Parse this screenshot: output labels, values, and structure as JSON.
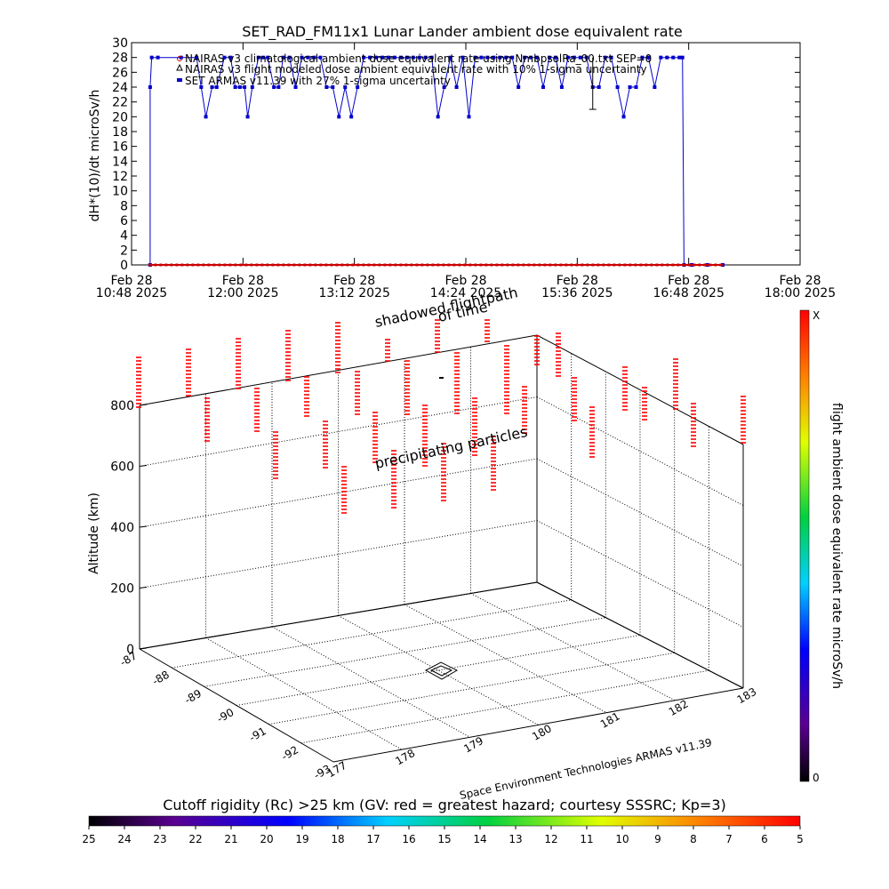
{
  "chart_data": [
    {
      "type": "line",
      "title": "SET_RAD_FM11x1  Lunar Lander ambient dose equivalent rate",
      "ylabel": "dH*(10)/dt microSv/h",
      "ylim": [
        0,
        30
      ],
      "yticks": [
        0,
        2,
        4,
        6,
        8,
        10,
        12,
        14,
        16,
        18,
        20,
        22,
        24,
        26,
        28,
        30
      ],
      "xlim": [
        "2025-02-28 10:48",
        "2025-02-28 18:00"
      ],
      "xticks": [
        {
          "line1": "Feb 28",
          "line2": "10:48  2025",
          "t": "10:48"
        },
        {
          "line1": "Feb 28",
          "line2": "12:00  2025",
          "t": "12:00"
        },
        {
          "line1": "Feb 28",
          "line2": "13:12  2025",
          "t": "13:12"
        },
        {
          "line1": "Feb 28",
          "line2": "14:24  2025",
          "t": "14:24"
        },
        {
          "line1": "Feb 28",
          "line2": "15:36  2025",
          "t": "15:36"
        },
        {
          "line1": "Feb 28",
          "line2": "16:48  2025",
          "t": "16:48"
        },
        {
          "line1": "Feb 28",
          "line2": "18:00  2025",
          "t": "18:00"
        }
      ],
      "legend": [
        "NAIRAS v3 climatological ambient dose equivalent rate using NmbpsolRa_00.txt SEP=0",
        "NAIRAS v3 flight modeled dose ambient equivalent rate with 10% 1-sigma uncertainty",
        "SET ARMAS v11.39 with 27% 1-sigma uncertainty"
      ],
      "series": [
        {
          "name": "SET ARMAS v11.39 with 27% 1-sigma uncertainty",
          "color": "#0000cc",
          "x": [
            "11:00",
            "11:00",
            "11:01",
            "11:05",
            "11:20",
            "11:30",
            "11:33",
            "11:36",
            "11:40",
            "11:43",
            "11:48",
            "11:52",
            "11:55",
            "11:58",
            "12:01",
            "12:03",
            "12:06",
            "12:10",
            "12:13",
            "12:16",
            "12:20",
            "12:23",
            "12:26",
            "12:30",
            "12:34",
            "12:38",
            "12:42",
            "12:46",
            "12:50",
            "12:54",
            "12:58",
            "13:02",
            "13:06",
            "13:10",
            "13:14",
            "13:18",
            "13:22",
            "13:26",
            "13:30",
            "13:34",
            "13:38",
            "13:42",
            "13:46",
            "13:50",
            "13:54",
            "13:58",
            "14:02",
            "14:06",
            "14:10",
            "14:14",
            "14:18",
            "14:22",
            "14:26",
            "14:30",
            "14:34",
            "14:38",
            "14:42",
            "14:46",
            "14:50",
            "14:54",
            "14:58",
            "15:02",
            "15:06",
            "15:10",
            "15:14",
            "15:18",
            "15:22",
            "15:26",
            "15:30",
            "15:34",
            "15:38",
            "15:42",
            "15:46",
            "15:50",
            "15:54",
            "15:58",
            "16:02",
            "16:06",
            "16:10",
            "16:14",
            "16:18",
            "16:22",
            "16:26",
            "16:30",
            "16:34",
            "16:38",
            "16:42",
            "16:44",
            "16:45",
            "16:50",
            "17:00",
            "17:10"
          ],
          "y": [
            0,
            24,
            28,
            28,
            28,
            28,
            24,
            20,
            24,
            24,
            28,
            28,
            24,
            24,
            24,
            20,
            24,
            28,
            28,
            28,
            24,
            24,
            28,
            28,
            24,
            28,
            28,
            28,
            28,
            24,
            24,
            20,
            24,
            20,
            24,
            28,
            28,
            28,
            28,
            28,
            28,
            28,
            28,
            28,
            28,
            28,
            28,
            20,
            24,
            28,
            24,
            28,
            20,
            28,
            28,
            28,
            28,
            28,
            28,
            28,
            24,
            28,
            28,
            28,
            24,
            28,
            28,
            24,
            28,
            28,
            28,
            28,
            24,
            24,
            28,
            28,
            24,
            20,
            24,
            24,
            28,
            28,
            24,
            28,
            28,
            28,
            28,
            28,
            0,
            0,
            0,
            0
          ]
        },
        {
          "name": "NAIRAS v3 flight modeled dose ambient equivalent rate with 10% 1-sigma uncertainty",
          "color": "#cc0000",
          "x": [
            "11:00",
            "17:10"
          ],
          "y": [
            0,
            0
          ]
        }
      ]
    },
    {
      "type": "scatter",
      "subtype": "3d",
      "zlabel": "Altitude (km)",
      "zticks": [
        0,
        200,
        400,
        600,
        800
      ],
      "lat_ticks": [
        "-87",
        "-88",
        "-89",
        "-90",
        "-91",
        "-92",
        "-93"
      ],
      "lon_ticks": [
        "177",
        "178",
        "179",
        "180",
        "181",
        "182",
        "183"
      ],
      "annotations": [
        "shadowed flightpath",
        "of time",
        "precipitating particles"
      ],
      "colorbar_label": "flight ambient dose equivalent rate microSv/h",
      "colorbar_top": "X",
      "colorbar_bottom": "0",
      "credit": "Space Environment Technologies ARMAS v11.39",
      "point_color": "#ff0000"
    }
  ],
  "bottom_bar": {
    "caption": "Cutoff rigidity (Rc) >25 km (GV: red = greatest hazard; courtesy SSSRC; Kp=3)",
    "labels": [
      "25",
      "24",
      "23",
      "22",
      "21",
      "20",
      "19",
      "18",
      "17",
      "16",
      "15",
      "14",
      "13",
      "12",
      "11",
      "10",
      "9",
      "8",
      "7",
      "6",
      "5"
    ]
  }
}
